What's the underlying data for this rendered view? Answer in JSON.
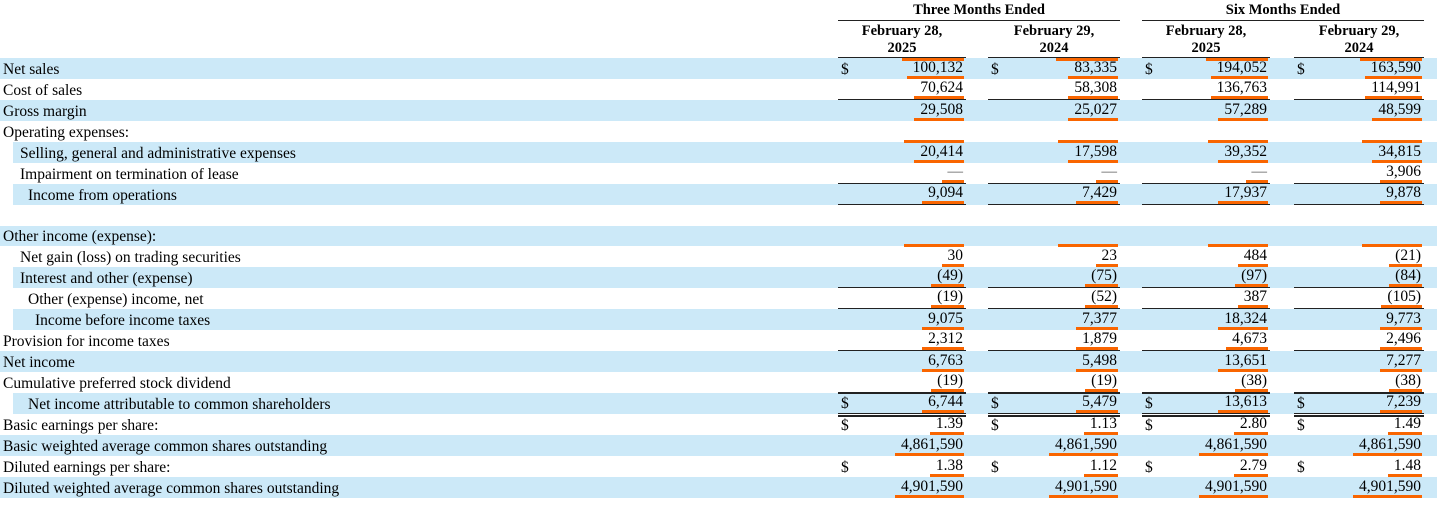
{
  "table": {
    "currency_symbol": "$",
    "colors": {
      "row_highlight": "#cce9f8",
      "fact_underline": "#f96500",
      "rule": "#222222"
    },
    "header": {
      "period1": "Three Months Ended",
      "period2": "Six Months Ended",
      "dates": [
        {
          "line1": "February 28,",
          "line2": "2025"
        },
        {
          "line1": "February 29,",
          "line2": "2024"
        },
        {
          "line1": "February 28,",
          "line2": "2025"
        },
        {
          "line1": "February 29,",
          "line2": "2024"
        }
      ]
    },
    "rows": [
      {
        "label": "Net sales",
        "indent": 0,
        "bg": "blue",
        "dollar": true,
        "values": [
          "100,132",
          "83,335",
          "194,052",
          "163,590"
        ]
      },
      {
        "label": "Cost of sales",
        "indent": 0,
        "bg": "white",
        "rule_bottom": true,
        "values": [
          "70,624",
          "58,308",
          "136,763",
          "114,991"
        ]
      },
      {
        "label": "Gross margin",
        "indent": 0,
        "bg": "blue",
        "values": [
          "29,508",
          "25,027",
          "57,289",
          "48,599"
        ]
      },
      {
        "label": "Operating expenses:",
        "indent": 0,
        "bg": "white",
        "orange_empty": true
      },
      {
        "label": "Selling, general and administrative expenses",
        "indent": 1,
        "bg": "blue",
        "values": [
          "20,414",
          "17,598",
          "39,352",
          "34,815"
        ]
      },
      {
        "label": "Impairment on termination of lease",
        "indent": 1,
        "bg": "white",
        "rule_bottom": true,
        "values": [
          "—",
          "—",
          "—",
          "3,906"
        ]
      },
      {
        "label": "Income from operations",
        "indent": 2,
        "bg": "blue",
        "rule_bottom": true,
        "values": [
          "9,094",
          "7,429",
          "17,937",
          "9,878"
        ]
      },
      {
        "label": "",
        "blank": true,
        "bg": "white"
      },
      {
        "label": "Other income (expense):",
        "indent": 0,
        "bg": "blue",
        "orange_empty": true
      },
      {
        "label": "Net gain (loss) on trading securities",
        "indent": 1,
        "bg": "white",
        "values": [
          "30",
          "23",
          "484",
          "(21)"
        ]
      },
      {
        "label": "Interest and other (expense)",
        "indent": 1,
        "bg": "blue",
        "rule_bottom": true,
        "values": [
          "(49)",
          "(75)",
          "(97)",
          "(84)"
        ]
      },
      {
        "label": "Other (expense) income, net",
        "indent": 2,
        "bg": "white",
        "rule_bottom": true,
        "values": [
          "(19)",
          "(52)",
          "387",
          "(105)"
        ]
      },
      {
        "label": "Income before income taxes",
        "indent": 3,
        "bg": "blue",
        "values": [
          "9,075",
          "7,377",
          "18,324",
          "9,773"
        ]
      },
      {
        "label": "Provision for income taxes",
        "indent": 0,
        "bg": "white",
        "rule_bottom": true,
        "values": [
          "2,312",
          "1,879",
          "4,673",
          "2,496"
        ]
      },
      {
        "label": "Net income",
        "indent": 0,
        "bg": "blue",
        "values": [
          "6,763",
          "5,498",
          "13,651",
          "7,277"
        ]
      },
      {
        "label": "Cumulative preferred stock dividend",
        "indent": 0,
        "bg": "white",
        "rule_bottom": true,
        "values": [
          "(19)",
          "(19)",
          "(38)",
          "(38)"
        ]
      },
      {
        "label": "Net income attributable to common shareholders",
        "indent": 2,
        "bg": "blue",
        "dollar": true,
        "rule_top": true,
        "rule_double_bottom": true,
        "values": [
          "6,744",
          "5,479",
          "13,613",
          "7,239"
        ]
      },
      {
        "label": "Basic earnings per share:",
        "indent": 0,
        "bg": "white",
        "dollar": true,
        "values": [
          "1.39",
          "1.13",
          "2.80",
          "1.49"
        ]
      },
      {
        "label": "Basic weighted average common shares outstanding",
        "indent": 0,
        "bg": "blue",
        "values": [
          "4,861,590",
          "4,861,590",
          "4,861,590",
          "4,861,590"
        ]
      },
      {
        "label": "Diluted earnings per share:",
        "indent": 0,
        "bg": "white",
        "dollar": true,
        "values": [
          "1.38",
          "1.12",
          "2.79",
          "1.48"
        ]
      },
      {
        "label": "Diluted weighted average common shares outstanding",
        "indent": 0,
        "bg": "blue",
        "values": [
          "4,901,590",
          "4,901,590",
          "4,901,590",
          "4,901,590"
        ]
      }
    ]
  }
}
